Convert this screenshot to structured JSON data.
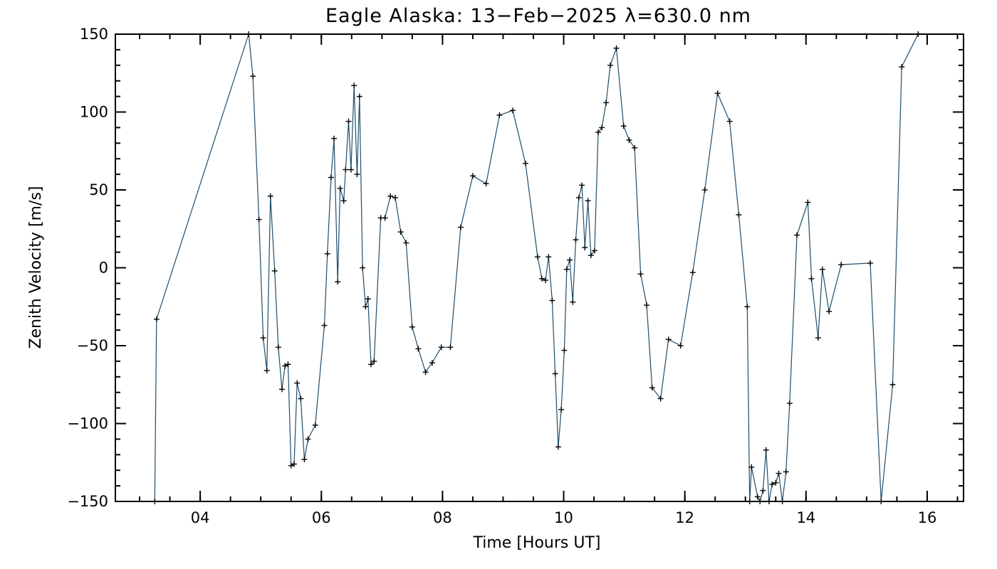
{
  "chart_data": {
    "type": "line",
    "title": "Eagle Alaska: 13−Feb−2025 λ=630.0 nm",
    "xlabel": "Time [Hours UT]",
    "ylabel": "Zenith Velocity [m/s]",
    "xlim": [
      2.6,
      16.6
    ],
    "ylim": [
      -150,
      150
    ],
    "x_ticks": [
      {
        "value": 4,
        "label": "04"
      },
      {
        "value": 6,
        "label": "06"
      },
      {
        "value": 8,
        "label": "08"
      },
      {
        "value": 10,
        "label": "10"
      },
      {
        "value": 12,
        "label": "12"
      },
      {
        "value": 14,
        "label": "14"
      },
      {
        "value": 16,
        "label": "16"
      }
    ],
    "y_ticks": [
      {
        "value": -150,
        "label": "−150"
      },
      {
        "value": -100,
        "label": "−100"
      },
      {
        "value": -50,
        "label": "−50"
      },
      {
        "value": 0,
        "label": "0"
      },
      {
        "value": 50,
        "label": "50"
      },
      {
        "value": 100,
        "label": "100"
      },
      {
        "value": 150,
        "label": "150"
      }
    ],
    "x_minor_step": 0.5,
    "y_minor_step": 10,
    "grid": false,
    "legend": "none",
    "colors": {
      "line": "#1f4e6b",
      "marker": "#000000",
      "axes": "#000000"
    },
    "series": [
      {
        "name": "Zenith Velocity",
        "marker": "plus",
        "x": [
          3.25,
          3.28,
          4.8,
          4.87,
          4.97,
          5.04,
          5.1,
          5.16,
          5.23,
          5.29,
          5.35,
          5.4,
          5.45,
          5.5,
          5.55,
          5.6,
          5.66,
          5.72,
          5.78,
          5.9,
          6.05,
          6.1,
          6.16,
          6.21,
          6.27,
          6.31,
          6.37,
          6.4,
          6.45,
          6.49,
          6.54,
          6.59,
          6.63,
          6.68,
          6.73,
          6.77,
          6.82,
          6.87,
          6.98,
          7.05,
          7.14,
          7.22,
          7.31,
          7.4,
          7.5,
          7.6,
          7.72,
          7.83,
          7.98,
          8.13,
          8.3,
          8.5,
          8.72,
          8.94,
          9.16,
          9.37,
          9.57,
          9.64,
          9.7,
          9.75,
          9.81,
          9.86,
          9.91,
          9.96,
          10.01,
          10.05,
          10.1,
          10.15,
          10.2,
          10.25,
          10.3,
          10.35,
          10.4,
          10.45,
          10.51,
          10.57,
          10.63,
          10.7,
          10.77,
          10.87,
          10.99,
          11.08,
          11.17,
          11.27,
          11.37,
          11.46,
          11.6,
          11.73,
          11.93,
          12.13,
          12.33,
          12.54,
          12.74,
          12.89,
          13.03,
          13.07,
          13.1,
          13.2,
          13.24,
          13.29,
          13.34,
          13.39,
          13.44,
          13.5,
          13.55,
          13.61,
          13.67,
          13.73,
          13.85,
          14.03,
          14.09,
          14.2,
          14.27,
          14.38,
          14.58,
          15.06,
          15.24,
          15.43,
          15.58,
          15.85
        ],
        "y": [
          -150,
          -33,
          150,
          123,
          31,
          -45,
          -66,
          46,
          -2,
          -51,
          -78,
          -63,
          -62,
          -127,
          -126,
          -74,
          -84,
          -123,
          -110,
          -101,
          -37,
          9,
          58,
          83,
          -9,
          51,
          43,
          63,
          94,
          63,
          117,
          60,
          110,
          0,
          -25,
          -20,
          -62,
          -60,
          32,
          32,
          46,
          45,
          23,
          16,
          -38,
          -52,
          -67,
          -61,
          -51,
          -51,
          26,
          59,
          54,
          98,
          101,
          67,
          7,
          -7,
          -8,
          7,
          -21,
          -68,
          -115,
          -91,
          -53,
          -1,
          5,
          -22,
          18,
          45,
          53,
          13,
          43,
          8,
          11,
          87,
          90,
          106,
          130,
          141,
          91,
          82,
          77,
          -4,
          -24,
          -77,
          -84,
          -46,
          -50,
          -3,
          50,
          112,
          94,
          34,
          -25,
          -150,
          -128,
          -147,
          -150,
          -143,
          -117,
          -150,
          -139,
          -138,
          -132,
          -150,
          -131,
          -87,
          21,
          42,
          -7,
          -45,
          -1,
          -28,
          2,
          3,
          -150,
          -75,
          129,
          150
        ]
      }
    ]
  }
}
